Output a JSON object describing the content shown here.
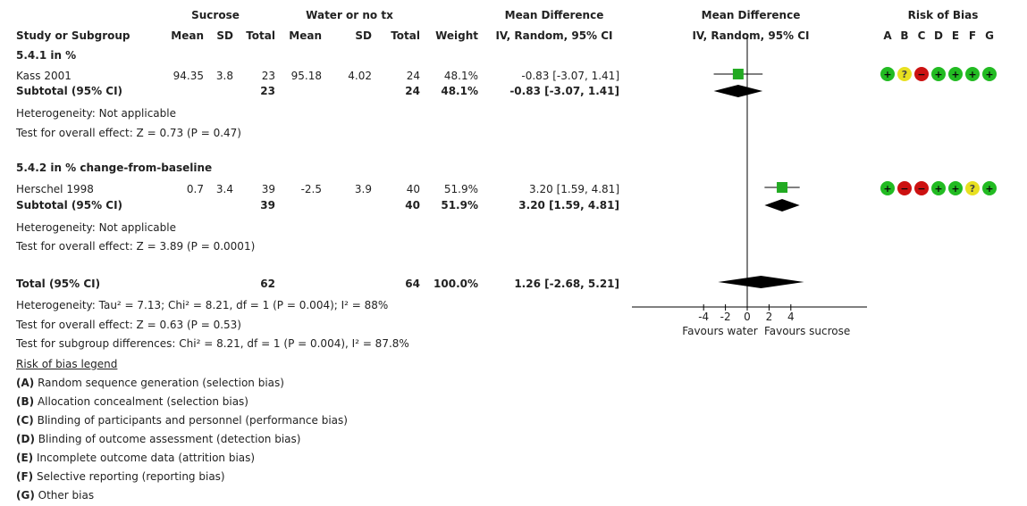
{
  "header": {
    "group1": "Sucrose",
    "group2": "Water or no tx",
    "effect_header1": "Mean Difference",
    "effect_sub1": "IV, Random, 95% CI",
    "effect_header2": "Mean Difference",
    "effect_sub2": "IV, Random, 95% CI",
    "rob_header": "Risk of Bias",
    "study_col": "Study or Subgroup",
    "mean1": "Mean",
    "sd1": "SD",
    "total1": "Total",
    "mean2": "Mean",
    "sd2": "SD",
    "total2": "Total",
    "weight": "Weight",
    "rob_letters": [
      "A",
      "B",
      "C",
      "D",
      "E",
      "F",
      "G"
    ]
  },
  "subgroups": [
    {
      "title": "5.4.1 in %",
      "study": {
        "name": "Kass 2001",
        "mean1": "94.35",
        "sd1": "3.8",
        "total1": "23",
        "mean2": "95.18",
        "sd2": "4.02",
        "total2": "24",
        "weight": "48.1%",
        "ci": "-0.83 [-3.07, 1.41]"
      },
      "subtotal": {
        "label": "Subtotal (95% CI)",
        "total1": "23",
        "total2": "24",
        "weight": "48.1%",
        "ci": "-0.83 [-3.07, 1.41]"
      },
      "heterogeneity": "Heterogeneity: Not applicable",
      "overall": "Test for overall effect: Z = 0.73 (P = 0.47)",
      "rob": [
        "green",
        "yellow",
        "red",
        "green",
        "green",
        "green",
        "green"
      ]
    },
    {
      "title": "5.4.2 in % change-from-baseline",
      "study": {
        "name": "Herschel 1998",
        "mean1": "0.7",
        "sd1": "3.4",
        "total1": "39",
        "mean2": "-2.5",
        "sd2": "3.9",
        "total2": "40",
        "weight": "51.9%",
        "ci": "3.20 [1.59, 4.81]"
      },
      "subtotal": {
        "label": "Subtotal (95% CI)",
        "total1": "39",
        "total2": "40",
        "weight": "51.9%",
        "ci": "3.20 [1.59, 4.81]"
      },
      "heterogeneity": "Heterogeneity: Not applicable",
      "overall": "Test for overall effect: Z = 3.89 (P = 0.0001)",
      "rob": [
        "green",
        "red",
        "red",
        "green",
        "green",
        "yellow",
        "green"
      ]
    }
  ],
  "total": {
    "label": "Total (95% CI)",
    "total1": "62",
    "total2": "64",
    "weight": "100.0%",
    "ci": "1.26 [-2.68, 5.21]"
  },
  "footer": {
    "heterogeneity": "Heterogeneity: Tau² = 7.13; Chi² = 8.21, df = 1 (P = 0.004); I² = 88%",
    "overall": "Test for overall effect: Z = 0.63 (P = 0.53)",
    "subgroup_diff": "Test for subgroup differences: Chi² = 8.21, df = 1 (P = 0.004), I² = 87.8%"
  },
  "legend": {
    "title": "Risk of bias legend",
    "items": [
      {
        "key": "(A)",
        "text": " Random sequence generation (selection bias)"
      },
      {
        "key": "(B)",
        "text": " Allocation concealment (selection bias)"
      },
      {
        "key": "(C)",
        "text": " Blinding of participants and personnel (performance bias)"
      },
      {
        "key": "(D)",
        "text": " Blinding of outcome assessment (detection bias)"
      },
      {
        "key": "(E)",
        "text": " Incomplete outcome data (attrition bias)"
      },
      {
        "key": "(F)",
        "text": " Selective reporting (reporting bias)"
      },
      {
        "key": "(G)",
        "text": " Other bias"
      }
    ]
  },
  "colors": {
    "green": "#22bb22",
    "yellow": "#e8e020",
    "red": "#cc1111",
    "marker": "#22aa22",
    "diamond": "#000000",
    "axis": "#000000"
  },
  "rob_symbols": {
    "green": "+",
    "yellow": "?",
    "red": "−"
  },
  "chart_data": {
    "type": "forest",
    "xlim": [
      -6,
      6
    ],
    "ticks": [
      -4,
      -2,
      0,
      2,
      4
    ],
    "xlabel_left": "Favours water",
    "xlabel_right": "Favours sucrose",
    "studies": [
      {
        "name": "Kass 2001",
        "md": -0.83,
        "lower": -3.07,
        "upper": 1.41,
        "weight": 48.1
      },
      {
        "name": "Herschel 1998",
        "md": 3.2,
        "lower": 1.59,
        "upper": 4.81,
        "weight": 51.9
      }
    ],
    "subtotals": [
      {
        "md": -0.83,
        "lower": -3.07,
        "upper": 1.41
      },
      {
        "md": 3.2,
        "lower": 1.59,
        "upper": 4.81
      }
    ],
    "total": {
      "md": 1.26,
      "lower": -2.68,
      "upper": 5.21
    }
  }
}
